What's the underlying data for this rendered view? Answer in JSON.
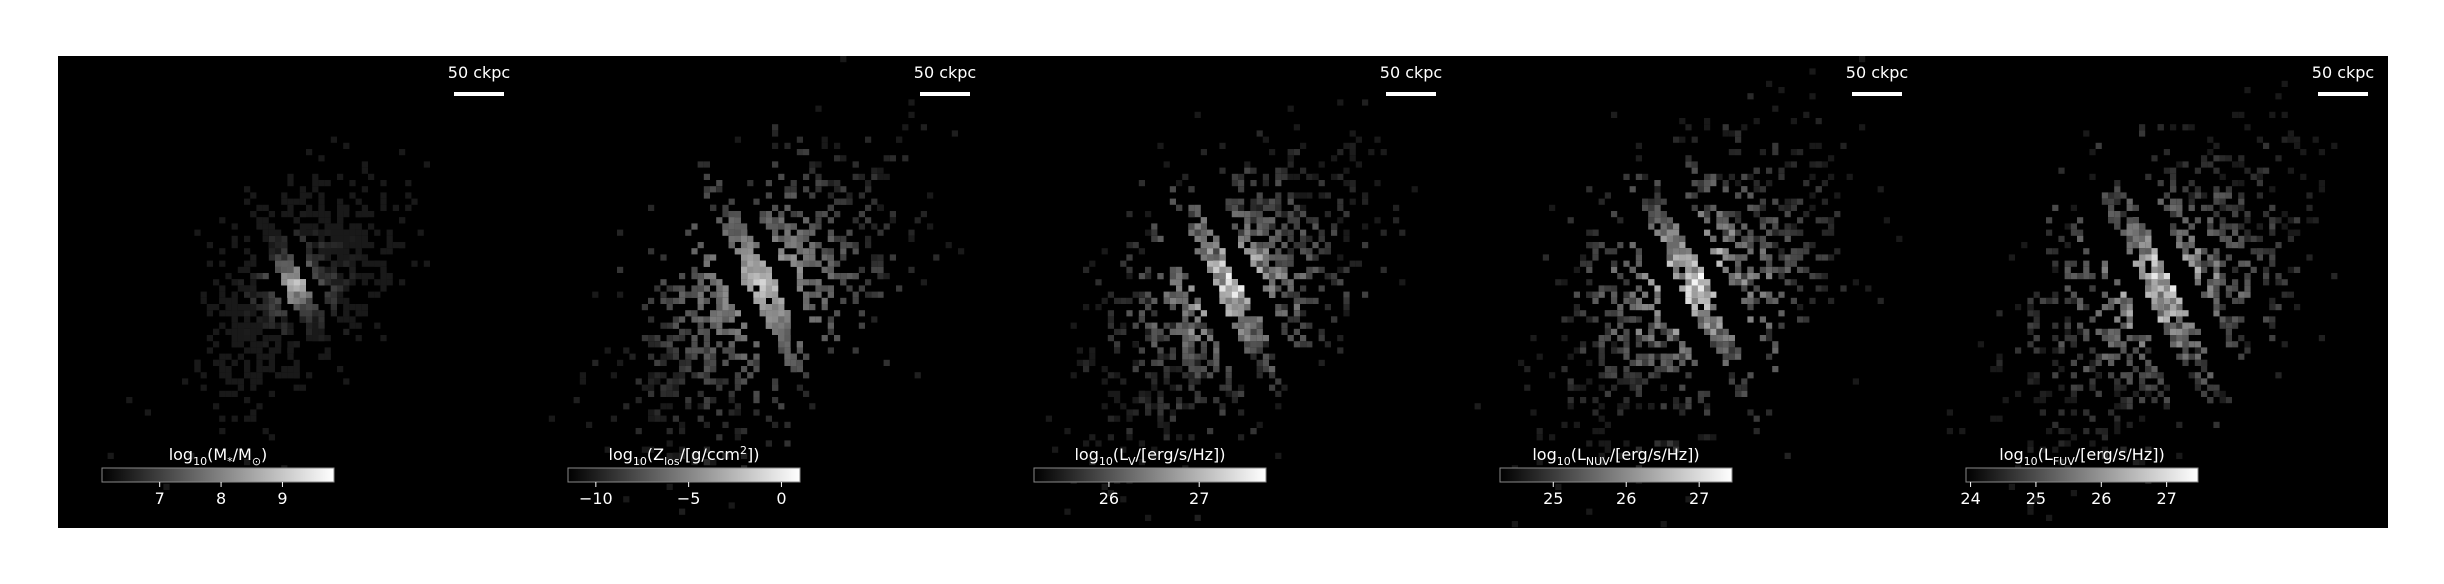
{
  "panels": [
    {
      "scale_label": "50 ckpc",
      "cbar_label": [
        {
          "text": "log"
        },
        {
          "text": "10",
          "sub": true
        },
        {
          "text": "(M"
        },
        {
          "text": "*",
          "sub": true
        },
        {
          "text": "/M"
        },
        {
          "text": "⊙",
          "sub": true
        },
        {
          "text": ")"
        }
      ],
      "clim": [
        6.06,
        9.84
      ],
      "cticks": [
        7,
        8,
        9
      ]
    },
    {
      "scale_label": "50 ckpc",
      "cbar_label": [
        {
          "text": "log"
        },
        {
          "text": "10",
          "sub": true
        },
        {
          "text": "(Z"
        },
        {
          "text": "los",
          "sub": true
        },
        {
          "text": "/[g/ccm"
        },
        {
          "text": "2",
          "sup": true
        },
        {
          "text": "])"
        }
      ],
      "clim": [
        -11.5,
        1.0
      ],
      "cticks": [
        {
          "value": -10,
          "label": "−10"
        },
        {
          "value": -5,
          "label": "−5"
        },
        0
      ]
    },
    {
      "scale_label": "50 ckpc",
      "cbar_label": [
        {
          "text": "log"
        },
        {
          "text": "10",
          "sub": true
        },
        {
          "text": "(L"
        },
        {
          "text": "V",
          "sub": true
        },
        {
          "text": "/[erg/s/Hz])"
        }
      ],
      "clim": [
        25.17,
        27.74
      ],
      "cticks": [
        26,
        27
      ]
    },
    {
      "scale_label": "50 ckpc",
      "cbar_label": [
        {
          "text": "log"
        },
        {
          "text": "10",
          "sub": true
        },
        {
          "text": "(L"
        },
        {
          "text": "NUV",
          "sub": true
        },
        {
          "text": "/[erg/s/Hz])"
        }
      ],
      "clim": [
        24.27,
        27.45
      ],
      "cticks": [
        25,
        26,
        27
      ]
    },
    {
      "scale_label": "50 ckpc",
      "cbar_label": [
        {
          "text": "log"
        },
        {
          "text": "10",
          "sub": true
        },
        {
          "text": "(L"
        },
        {
          "text": "FUV",
          "sub": true
        },
        {
          "text": "/[erg/s/Hz])"
        }
      ],
      "clim": [
        23.93,
        27.48
      ],
      "cticks": [
        24,
        25,
        26,
        27
      ]
    }
  ]
}
